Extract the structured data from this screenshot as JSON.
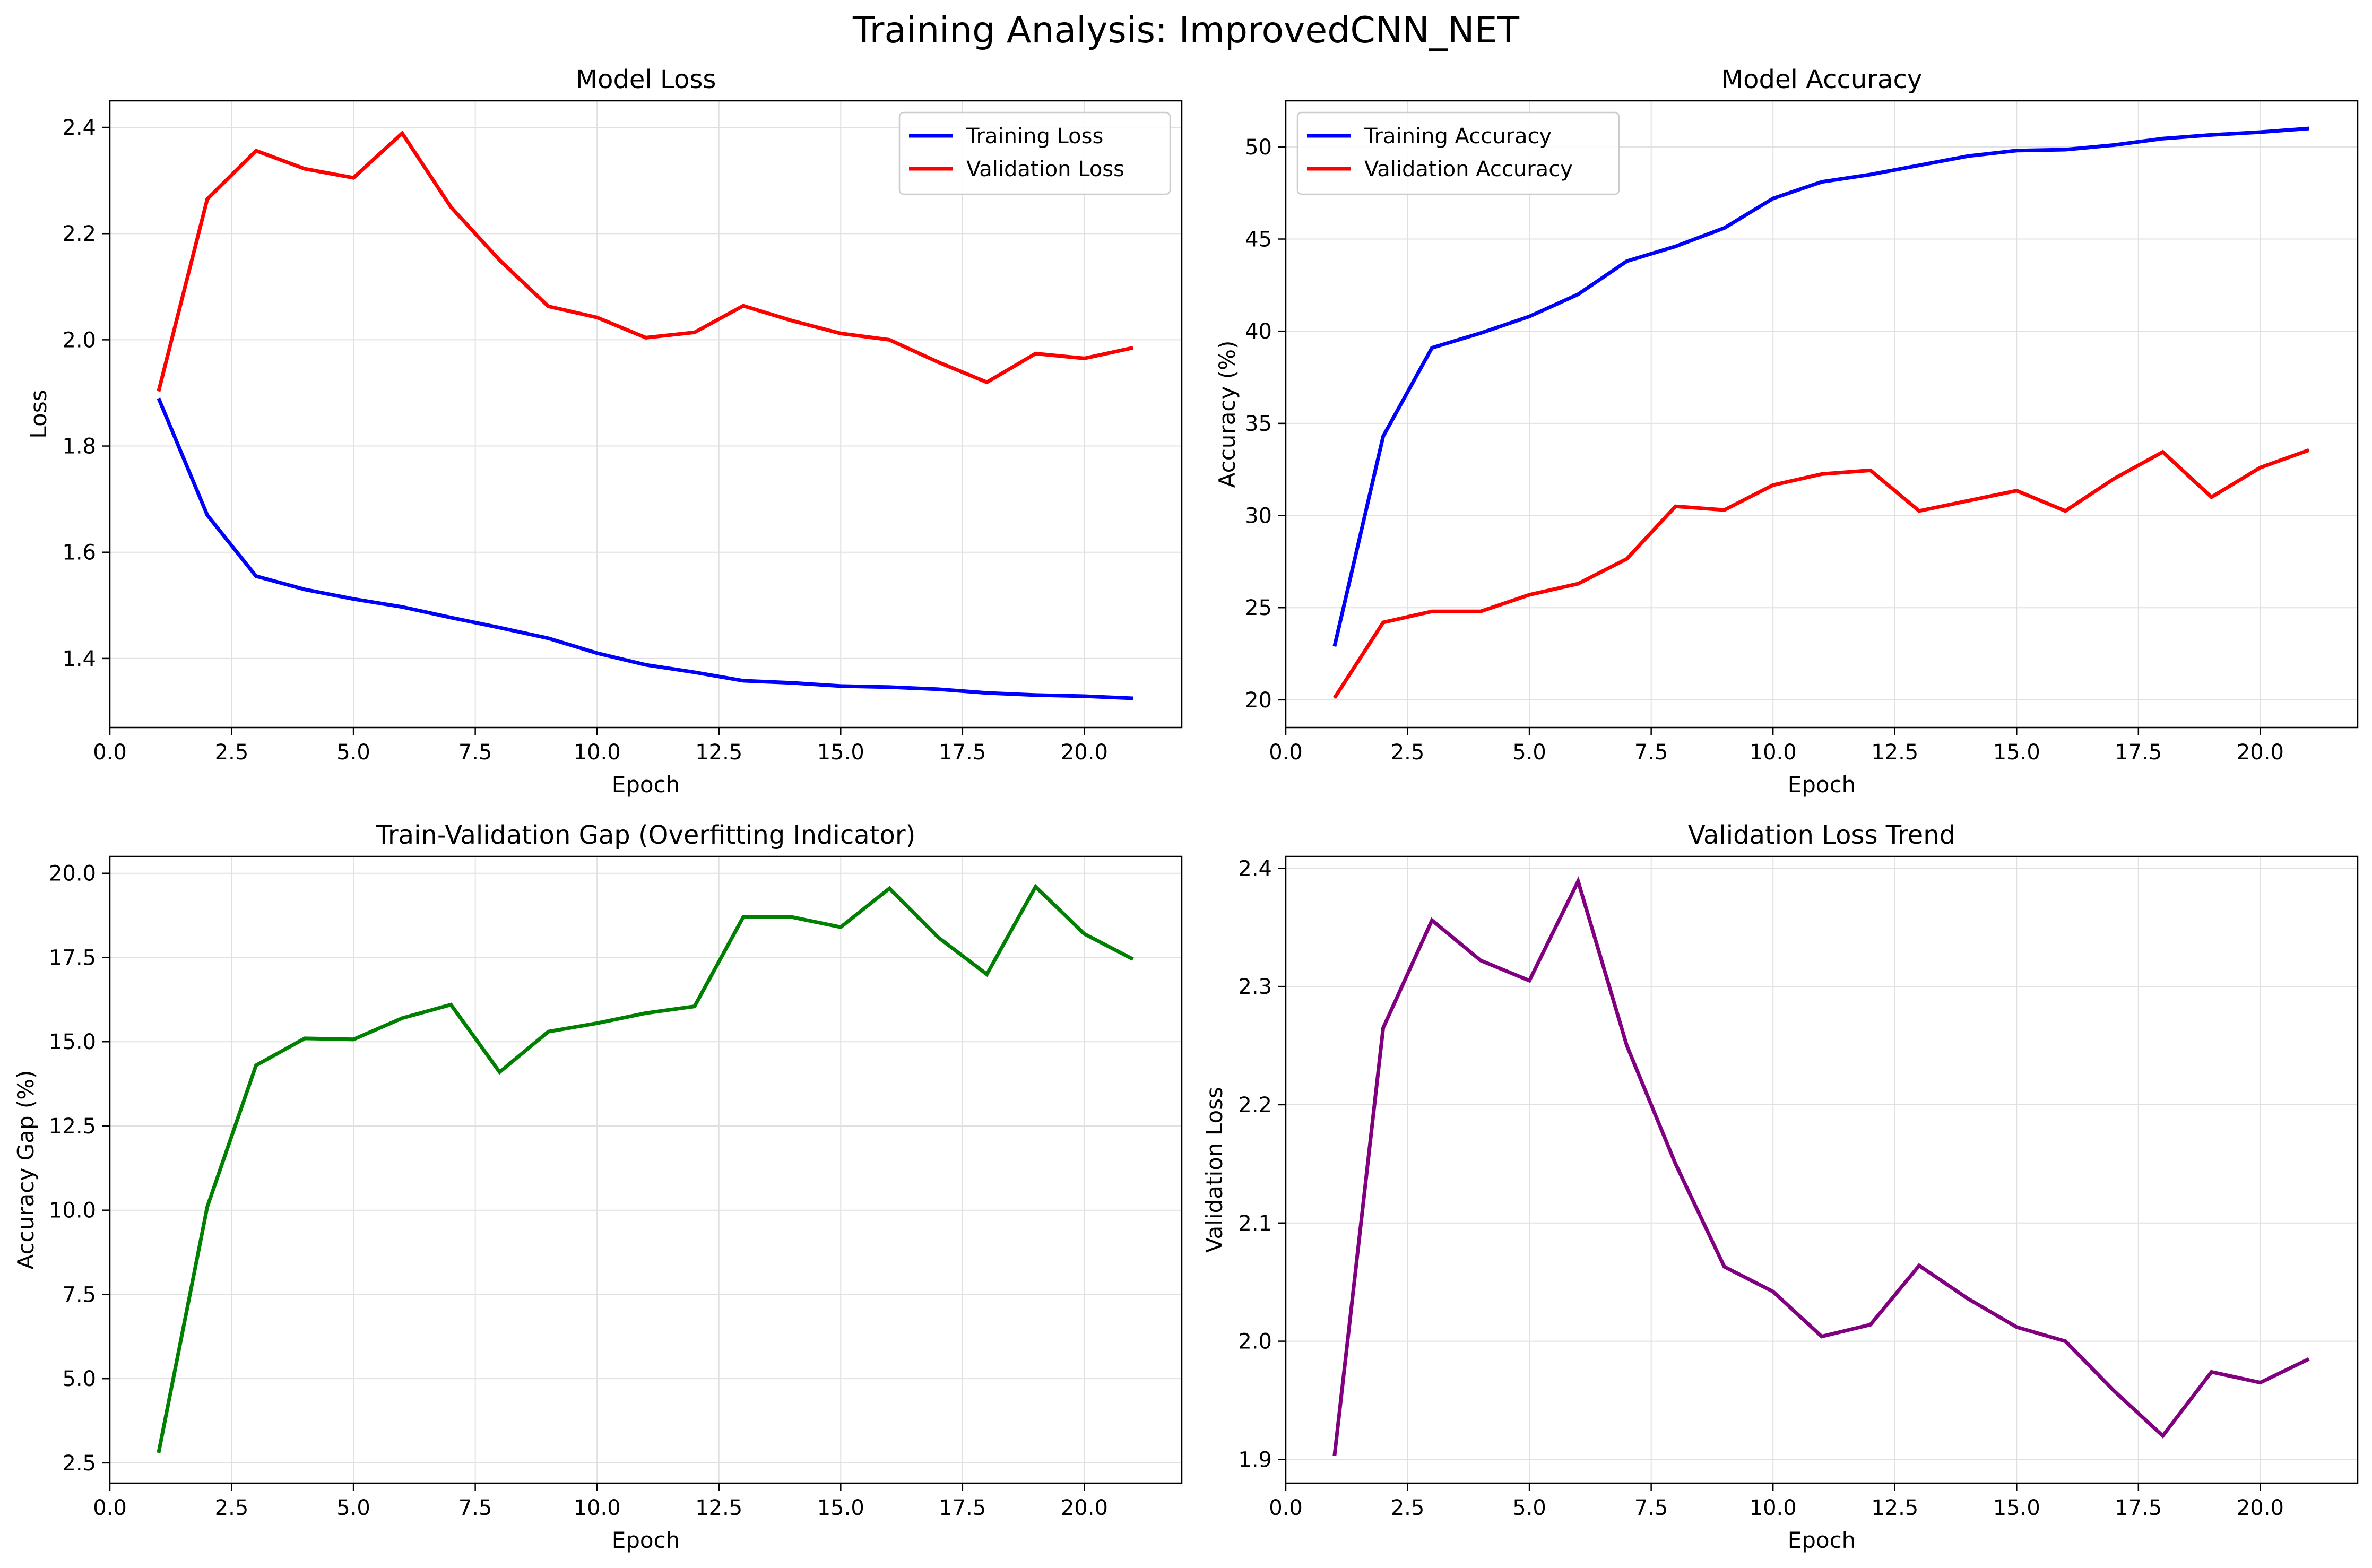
{
  "figure": {
    "title": "Training Analysis: ImprovedCNN_NET"
  },
  "chart_data": [
    {
      "type": "line",
      "title": "Model Loss",
      "xlabel": "Epoch",
      "ylabel": "Loss",
      "xlim": [
        0,
        22
      ],
      "ylim": [
        1.27,
        2.45
      ],
      "xticks": [
        0.0,
        2.5,
        5.0,
        7.5,
        10.0,
        12.5,
        15.0,
        17.5,
        20.0
      ],
      "xtick_labels": [
        "0.0",
        "2.5",
        "5.0",
        "7.5",
        "10.0",
        "12.5",
        "15.0",
        "17.5",
        "20.0"
      ],
      "yticks": [
        1.4,
        1.6,
        1.8,
        2.0,
        2.2,
        2.4
      ],
      "ytick_labels": [
        "1.4",
        "1.6",
        "1.8",
        "2.0",
        "2.2",
        "2.4"
      ],
      "grid": true,
      "legend": "top-right",
      "x": [
        1,
        2,
        3,
        4,
        5,
        6,
        7,
        8,
        9,
        10,
        11,
        12,
        13,
        14,
        15,
        16,
        17,
        18,
        19,
        20,
        21
      ],
      "series": [
        {
          "name": "Training Loss",
          "color": "#0000ff",
          "values": [
            1.89,
            1.67,
            1.555,
            1.53,
            1.512,
            1.497,
            1.477,
            1.458,
            1.438,
            1.41,
            1.388,
            1.374,
            1.358,
            1.354,
            1.348,
            1.346,
            1.342,
            1.335,
            1.331,
            1.329,
            1.325
          ]
        },
        {
          "name": "Validation Loss",
          "color": "#ff0000",
          "values": [
            1.903,
            2.265,
            2.356,
            2.322,
            2.305,
            2.389,
            2.25,
            2.15,
            2.063,
            2.042,
            2.004,
            2.014,
            2.064,
            2.036,
            2.012,
            2.0,
            1.958,
            1.92,
            1.974,
            1.965,
            1.985
          ]
        }
      ]
    },
    {
      "type": "line",
      "title": "Model Accuracy",
      "xlabel": "Epoch",
      "ylabel": "Accuracy (%)",
      "xlim": [
        0,
        22
      ],
      "ylim": [
        18.5,
        52.5
      ],
      "xticks": [
        0.0,
        2.5,
        5.0,
        7.5,
        10.0,
        12.5,
        15.0,
        17.5,
        20.0
      ],
      "xtick_labels": [
        "0.0",
        "2.5",
        "5.0",
        "7.5",
        "10.0",
        "12.5",
        "15.0",
        "17.5",
        "20.0"
      ],
      "yticks": [
        20,
        25,
        30,
        35,
        40,
        45,
        50
      ],
      "ytick_labels": [
        "20",
        "25",
        "30",
        "35",
        "40",
        "45",
        "50"
      ],
      "grid": true,
      "legend": "top-left",
      "x": [
        1,
        2,
        3,
        4,
        5,
        6,
        7,
        8,
        9,
        10,
        11,
        12,
        13,
        14,
        15,
        16,
        17,
        18,
        19,
        20,
        21
      ],
      "series": [
        {
          "name": "Training Accuracy",
          "color": "#0000ff",
          "values": [
            22.9,
            34.3,
            39.1,
            39.9,
            40.8,
            42.0,
            43.8,
            44.6,
            45.6,
            47.2,
            48.1,
            48.5,
            49.0,
            49.5,
            49.8,
            49.85,
            50.1,
            50.45,
            50.65,
            50.8,
            51.0
          ]
        },
        {
          "name": "Validation Accuracy",
          "color": "#ff0000",
          "values": [
            20.1,
            24.2,
            24.8,
            24.8,
            25.7,
            26.3,
            27.65,
            30.5,
            30.3,
            31.65,
            32.25,
            32.45,
            30.25,
            30.8,
            31.35,
            30.25,
            32.0,
            33.45,
            31.0,
            32.6,
            33.55
          ]
        }
      ]
    },
    {
      "type": "line",
      "title": "Train-Validation Gap (Overfitting Indicator)",
      "xlabel": "Epoch",
      "ylabel": "Accuracy Gap (%)",
      "xlim": [
        0,
        22
      ],
      "ylim": [
        1.9,
        20.5
      ],
      "xticks": [
        0.0,
        2.5,
        5.0,
        7.5,
        10.0,
        12.5,
        15.0,
        17.5,
        20.0
      ],
      "xtick_labels": [
        "0.0",
        "2.5",
        "5.0",
        "7.5",
        "10.0",
        "12.5",
        "15.0",
        "17.5",
        "20.0"
      ],
      "yticks": [
        2.5,
        5.0,
        7.5,
        10.0,
        12.5,
        15.0,
        17.5,
        20.0
      ],
      "ytick_labels": [
        "2.5",
        "5.0",
        "7.5",
        "10.0",
        "12.5",
        "15.0",
        "17.5",
        "20.0"
      ],
      "grid": true,
      "x": [
        1,
        2,
        3,
        4,
        5,
        6,
        7,
        8,
        9,
        10,
        11,
        12,
        13,
        14,
        15,
        16,
        17,
        18,
        19,
        20,
        21
      ],
      "series": [
        {
          "color": "#008000",
          "values": [
            2.8,
            10.1,
            14.3,
            15.1,
            15.07,
            15.7,
            16.1,
            14.1,
            15.3,
            15.55,
            15.85,
            16.05,
            18.7,
            18.7,
            18.4,
            19.55,
            18.1,
            17.0,
            19.6,
            18.2,
            17.45
          ]
        }
      ]
    },
    {
      "type": "line",
      "title": "Validation Loss Trend",
      "xlabel": "Epoch",
      "ylabel": "Validation Loss",
      "xlim": [
        0,
        22
      ],
      "ylim": [
        1.88,
        2.41
      ],
      "xticks": [
        0.0,
        2.5,
        5.0,
        7.5,
        10.0,
        12.5,
        15.0,
        17.5,
        20.0
      ],
      "xtick_labels": [
        "0.0",
        "2.5",
        "5.0",
        "7.5",
        "10.0",
        "12.5",
        "15.0",
        "17.5",
        "20.0"
      ],
      "yticks": [
        1.9,
        2.0,
        2.1,
        2.2,
        2.3,
        2.4
      ],
      "ytick_labels": [
        "1.9",
        "2.0",
        "2.1",
        "2.2",
        "2.3",
        "2.4"
      ],
      "grid": true,
      "x": [
        1,
        2,
        3,
        4,
        5,
        6,
        7,
        8,
        9,
        10,
        11,
        12,
        13,
        14,
        15,
        16,
        17,
        18,
        19,
        20,
        21
      ],
      "series": [
        {
          "color": "#800080",
          "values": [
            1.903,
            2.265,
            2.356,
            2.322,
            2.305,
            2.389,
            2.25,
            2.15,
            2.063,
            2.042,
            2.004,
            2.014,
            2.064,
            2.036,
            2.012,
            2.0,
            1.958,
            1.92,
            1.974,
            1.965,
            1.985
          ]
        }
      ]
    }
  ]
}
